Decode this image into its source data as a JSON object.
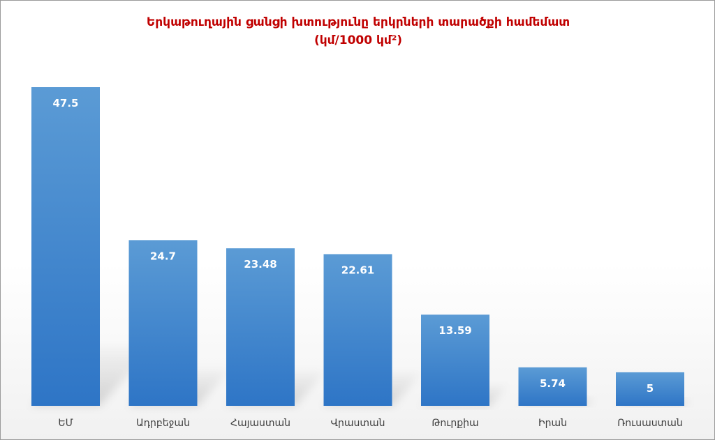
{
  "chart_data": {
    "type": "bar",
    "title": "Երկաթուղային ցանցի խտությունը երկրների տարածքի համեմատ",
    "subtitle": "(կմ/1000 կմ²)",
    "categories": [
      "ԵՄ",
      "Ադրբեջան",
      "Հայաստան",
      "Վրաստան",
      "Թուրքիա",
      "Իրան",
      "Ռուսաստան"
    ],
    "values": [
      47.5,
      24.7,
      23.48,
      22.61,
      13.59,
      5.74,
      5
    ],
    "value_labels": [
      "47.5",
      "24.7",
      "23.48",
      "22.61",
      "13.59",
      "5.74",
      "5"
    ],
    "ylim": [
      0,
      47.5
    ],
    "grid": false,
    "legend": "none",
    "bar_color_top": "#5b9bd5",
    "bar_color_bottom": "#2e75c6",
    "title_color": "#c00000"
  }
}
